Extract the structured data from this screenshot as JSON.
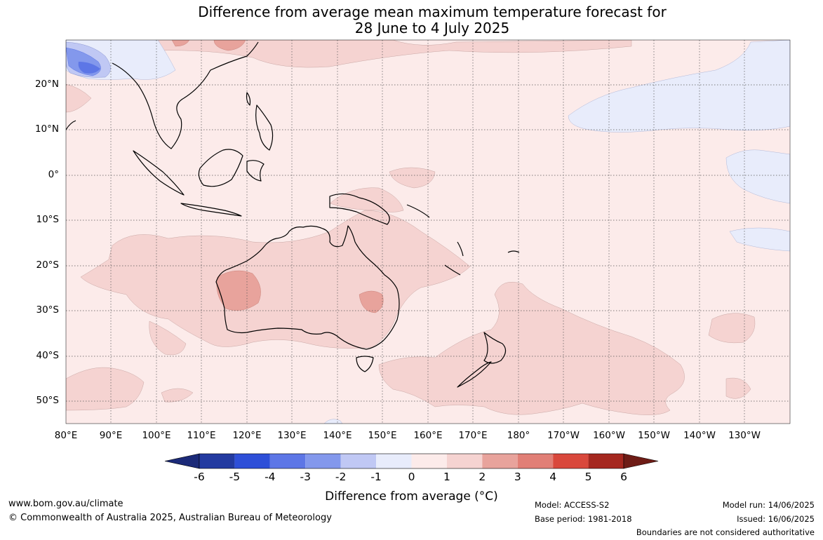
{
  "title": {
    "line1": "Difference from average mean maximum temperature forecast for",
    "line2": "28 June to 4 July 2025"
  },
  "map": {
    "region": "Australia, Maritime Continent and western Pacific",
    "latitude_labels": [
      "20°N",
      "10°N",
      "0°",
      "10°S",
      "20°S",
      "30°S",
      "40°S",
      "50°S"
    ],
    "longitude_labels": [
      "80°E",
      "90°E",
      "100°E",
      "110°E",
      "120°E",
      "130°E",
      "140°E",
      "150°E",
      "160°E",
      "170°E",
      "180°",
      "170°W",
      "160°W",
      "150°W",
      "140°W",
      "130°W"
    ],
    "gridlines": true,
    "background_anomaly_band": "0 to 1",
    "features": [
      {
        "name": "Western Australia interior",
        "anomaly_band": "2 to 3"
      },
      {
        "name": "Southeast Queensland / northern NSW",
        "anomaly_band": "2 to 3"
      },
      {
        "name": "Northern Indian Ocean / Bay of Bengal",
        "anomaly_band": "-4 to -2"
      },
      {
        "name": "Central North Pacific",
        "anomaly_band": "-1 to 0"
      },
      {
        "name": "Southwest Pacific / Tasman Sea",
        "anomaly_band": "1 to 2"
      }
    ]
  },
  "colorbar": {
    "ticks": [
      "-6",
      "-5",
      "-4",
      "-3",
      "-2",
      "-1",
      "0",
      "1",
      "2",
      "3",
      "4",
      "5",
      "6"
    ],
    "colors": [
      "#233aa0",
      "#2e4fd8",
      "#5d76e6",
      "#8398ec",
      "#c0c8f4",
      "#e8ecfb",
      "#fcebea",
      "#f5d3d1",
      "#e8a39c",
      "#e17f76",
      "#d9483c",
      "#a5271f"
    ],
    "extend_low_color": "#1b2a78",
    "extend_high_color": "#6e1c16",
    "label": "Difference from average (°C)"
  },
  "footer": {
    "website": "www.bom.gov.au/climate",
    "copyright": "© Commonwealth of Australia 2025, Australian Bureau of Meteorology",
    "model": "Model: ACCESS-S2",
    "base_period": "Base period: 1981-2018",
    "model_run": "Model run: 14/06/2025",
    "issued": "Issued: 16/06/2025",
    "disclaimer": "Boundaries are not considered authoritative"
  }
}
